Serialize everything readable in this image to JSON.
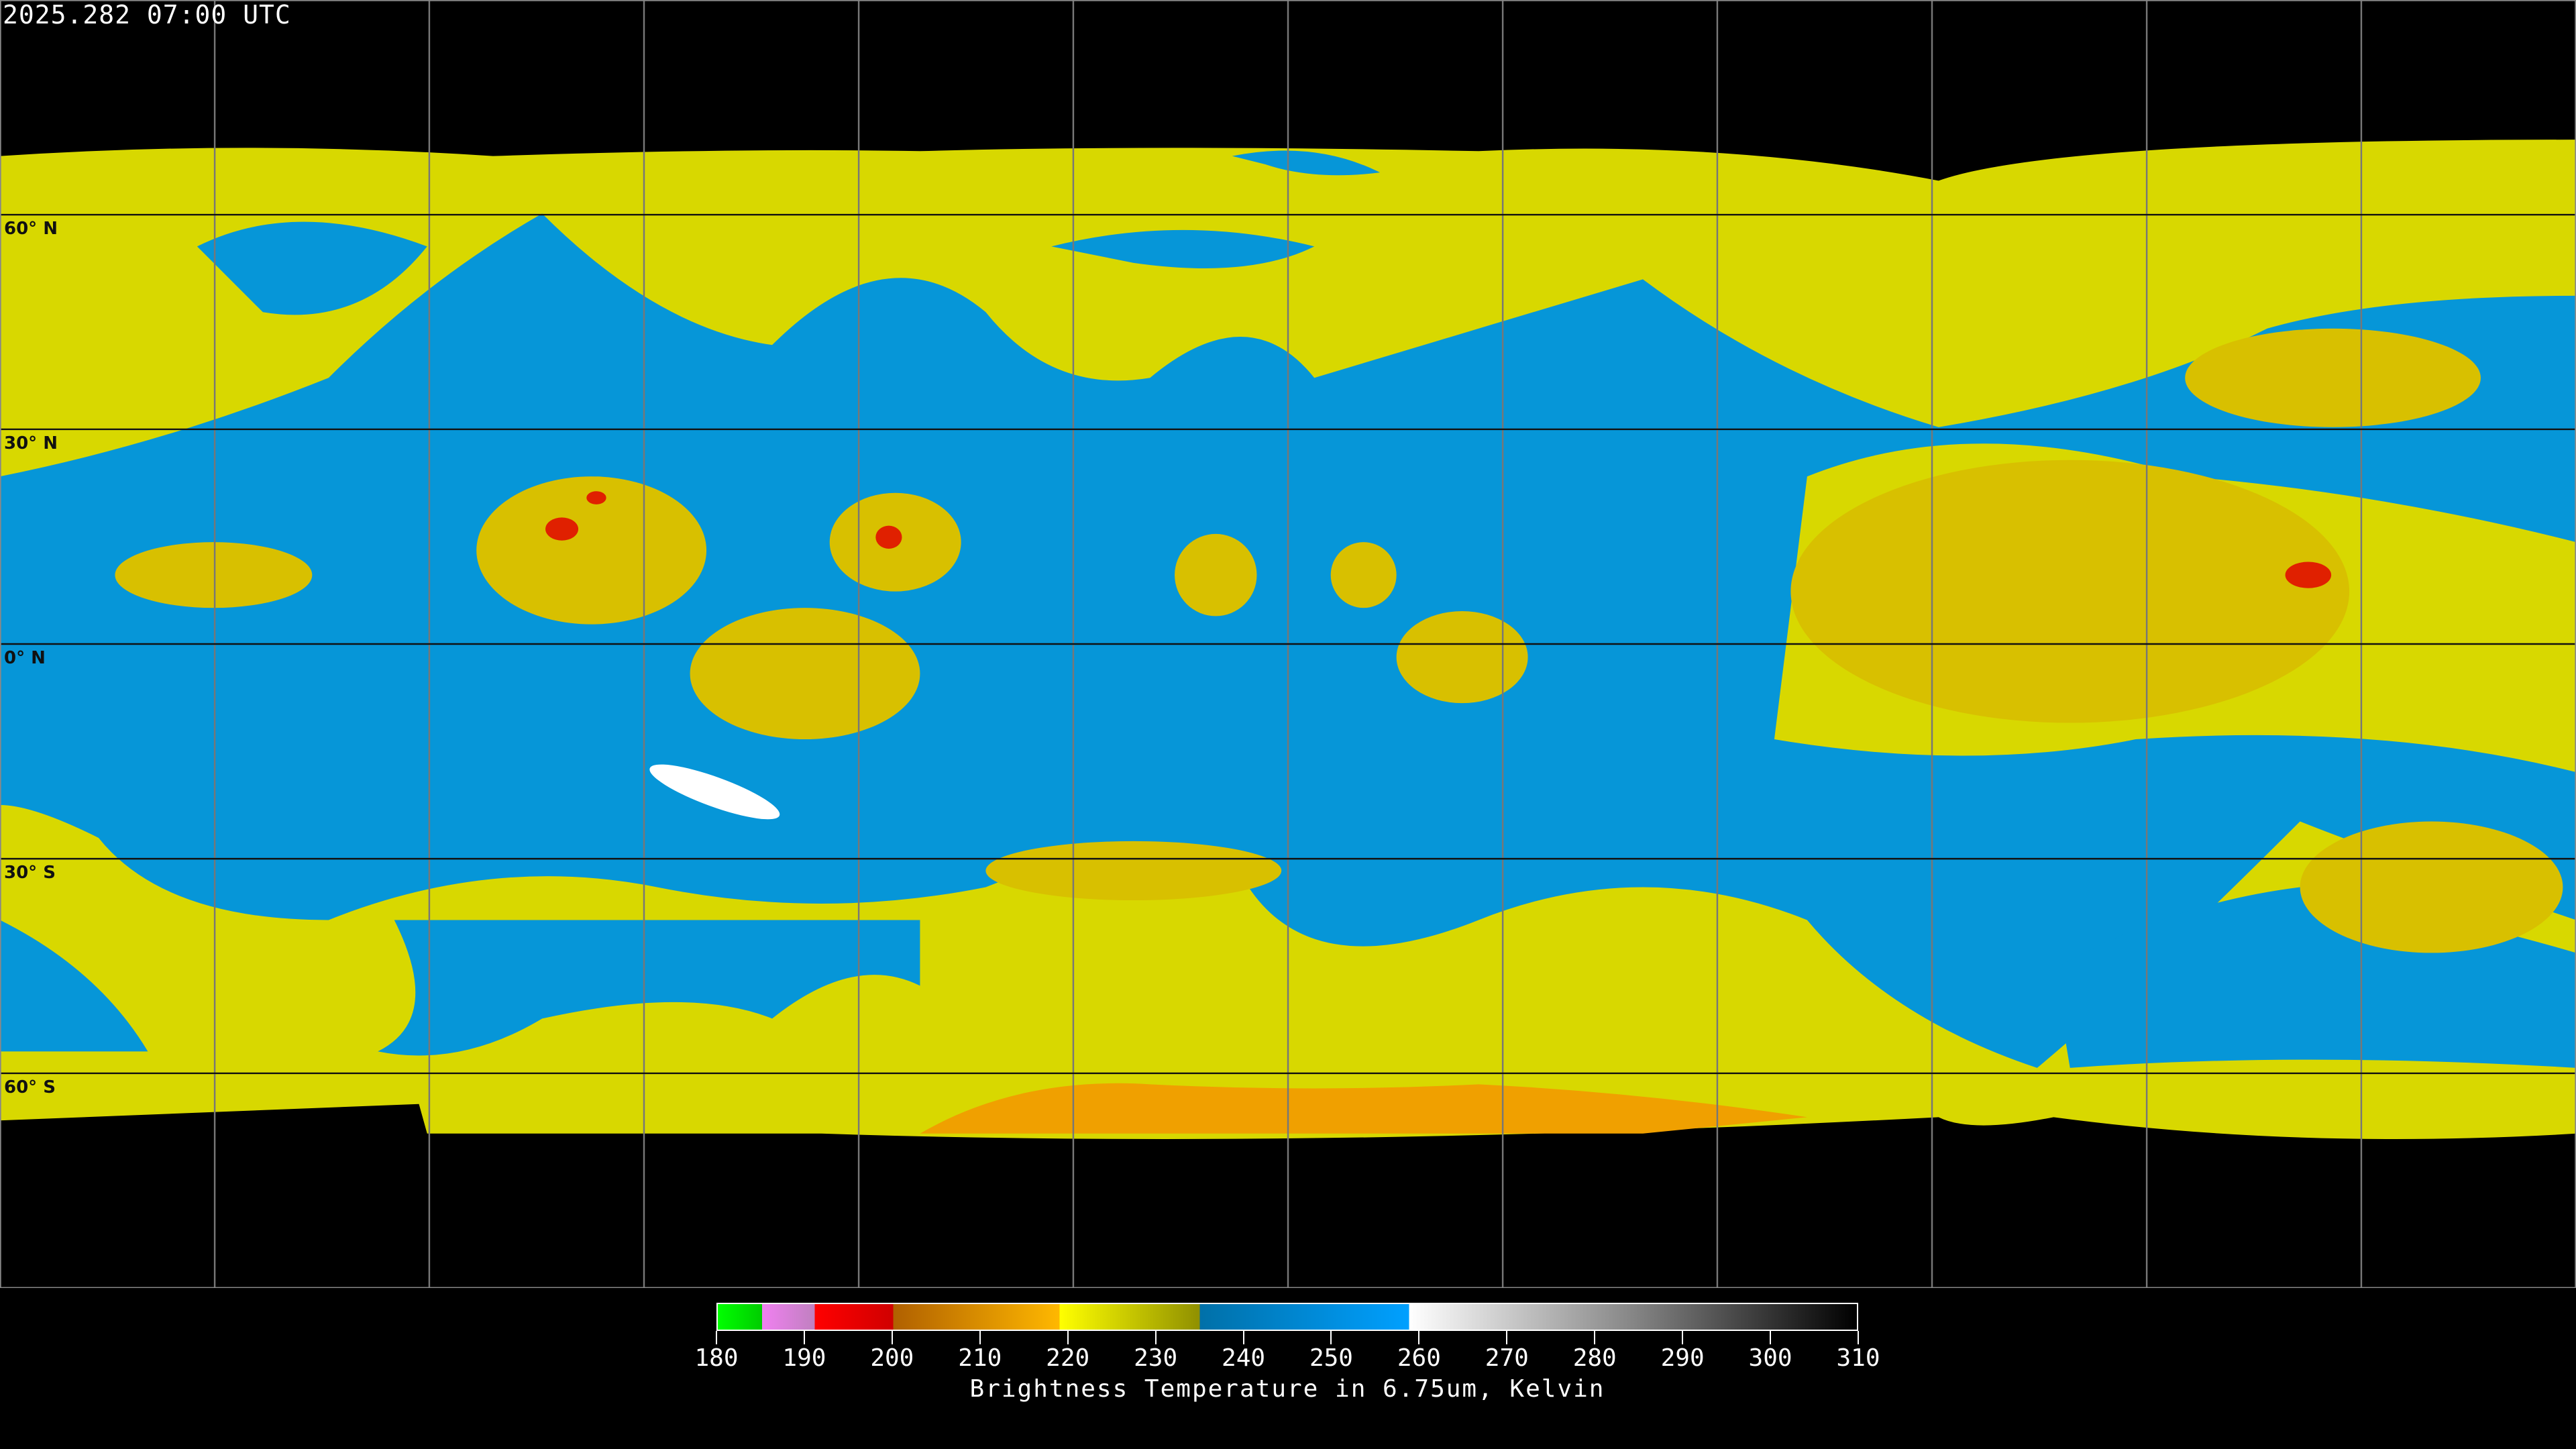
{
  "header": {
    "timestamp": "2025.282 07:00 UTC"
  },
  "map": {
    "projection": "equirectangular",
    "lat_labels": [
      "60° N",
      "30° N",
      "0° N",
      "30° S",
      "60° S"
    ],
    "colors": {
      "cold_cloud": "#e0e000",
      "deep_convection": "#e00000",
      "very_cold": "#ffb000",
      "dry_air": "#0090e0",
      "no_data": "#000000"
    }
  },
  "colorbar": {
    "ticks": [
      "180",
      "190",
      "200",
      "210",
      "220",
      "230",
      "240",
      "250",
      "260",
      "270",
      "280",
      "290",
      "300",
      "310"
    ],
    "title": "Brightness Temperature in 6.75um, Kelvin",
    "range": [
      180,
      310
    ]
  }
}
